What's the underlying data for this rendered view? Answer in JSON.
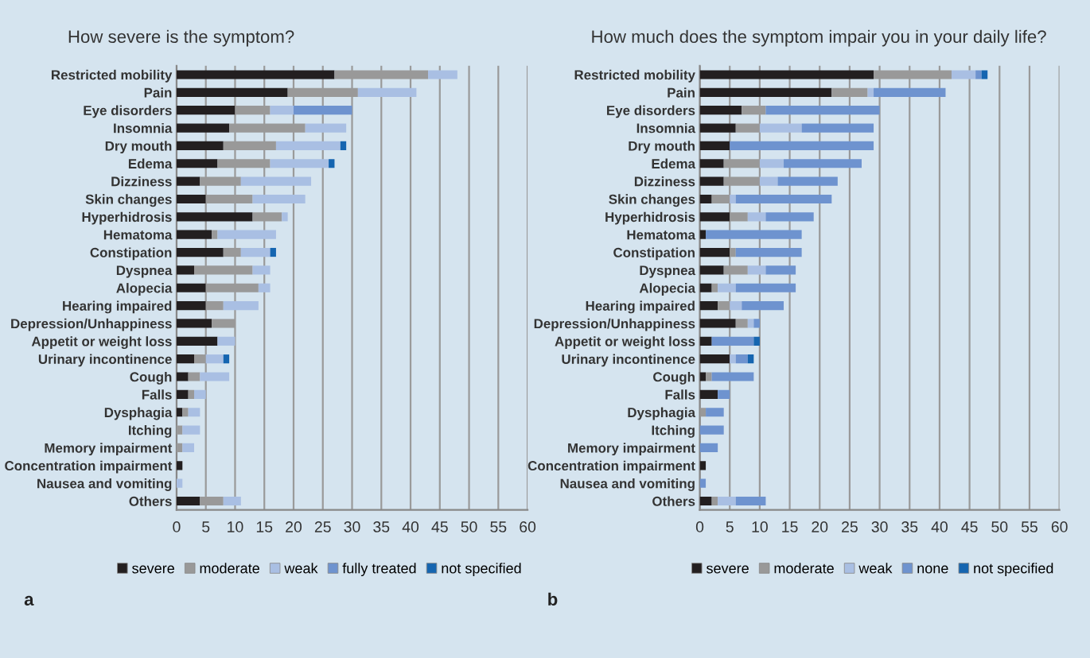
{
  "chart_data": [
    {
      "type": "bar",
      "orientation": "horizontal",
      "stacked": true,
      "title": "How severe is the symptom?",
      "annotations": [
        "a"
      ],
      "categories": [
        "Restricted mobility",
        "Pain",
        "Eye disorders",
        "Insomnia",
        "Dry mouth",
        "Edema",
        "Dizziness",
        "Skin changes",
        "Hyperhidrosis",
        "Hematoma",
        "Constipation",
        "Dyspnea",
        "Alopecia",
        "Hearing impaired",
        "Depression/Unhappiness",
        "Appetit or weight loss",
        "Urinary incontinence",
        "Cough",
        "Falls",
        "Dysphagia",
        "Itching",
        "Memory impairment",
        "Concentration impairment",
        "Nausea and vomiting",
        "Others"
      ],
      "series": [
        {
          "name": "severe",
          "color": "#231f20",
          "values": [
            27,
            19,
            10,
            9,
            8,
            7,
            4,
            5,
            13,
            6,
            8,
            3,
            5,
            5,
            6,
            7,
            3,
            2,
            2,
            1,
            0,
            0,
            1,
            0,
            4
          ]
        },
        {
          "name": "moderate",
          "color": "#999999",
          "values": [
            16,
            12,
            6,
            13,
            9,
            9,
            7,
            8,
            5,
            1,
            3,
            10,
            9,
            3,
            4,
            0,
            2,
            2,
            1,
            1,
            1,
            1,
            0,
            0,
            4
          ]
        },
        {
          "name": "weak",
          "color": "#a9bfe3",
          "values": [
            5,
            10,
            4,
            7,
            11,
            10,
            12,
            9,
            1,
            10,
            5,
            3,
            2,
            6,
            0,
            3,
            3,
            5,
            2,
            2,
            3,
            2,
            0,
            1,
            3
          ]
        },
        {
          "name": "fully treated",
          "color": "#6e93cf",
          "values": [
            0,
            0,
            10,
            0,
            0,
            0,
            0,
            0,
            0,
            0,
            0,
            0,
            0,
            0,
            0,
            0,
            0,
            0,
            0,
            0,
            0,
            0,
            0,
            0,
            0
          ]
        },
        {
          "name": "not specified",
          "color": "#1565b0",
          "values": [
            0,
            0,
            0,
            0,
            1,
            1,
            0,
            0,
            0,
            0,
            1,
            0,
            0,
            0,
            0,
            0,
            1,
            0,
            0,
            0,
            0,
            0,
            0,
            0,
            0
          ]
        }
      ],
      "xlim": [
        0,
        60
      ],
      "xticks": [
        0,
        5,
        10,
        15,
        20,
        25,
        30,
        35,
        40,
        45,
        50,
        55,
        60
      ],
      "grid": "x",
      "legend": "bottom"
    },
    {
      "type": "bar",
      "orientation": "horizontal",
      "stacked": true,
      "title": "How much does the symptom impair you in your daily life?",
      "annotations": [
        "b"
      ],
      "categories": [
        "Restricted mobility",
        "Pain",
        "Eye disorders",
        "Insomnia",
        "Dry mouth",
        "Edema",
        "Dizziness",
        "Skin changes",
        "Hyperhidrosis",
        "Hematoma",
        "Constipation",
        "Dyspnea",
        "Alopecia",
        "Hearing impaired",
        "Depression/Unhappiness",
        "Appetit or weight loss",
        "Urinary incontinence",
        "Cough",
        "Falls",
        "Dysphagia",
        "Itching",
        "Memory impairment",
        "Concentration impairment",
        "Nausea and vomiting",
        "Others"
      ],
      "series": [
        {
          "name": "severe",
          "color": "#231f20",
          "values": [
            29,
            22,
            7,
            6,
            5,
            4,
            4,
            2,
            5,
            1,
            5,
            4,
            2,
            3,
            6,
            2,
            5,
            1,
            3,
            0,
            0,
            0,
            1,
            0,
            2
          ]
        },
        {
          "name": "moderate",
          "color": "#999999",
          "values": [
            13,
            6,
            4,
            4,
            0,
            6,
            6,
            3,
            3,
            0,
            1,
            4,
            1,
            2,
            2,
            0,
            0,
            1,
            0,
            1,
            0,
            0,
            0,
            0,
            1
          ]
        },
        {
          "name": "weak",
          "color": "#a9bfe3",
          "values": [
            4,
            1,
            0,
            7,
            0,
            4,
            3,
            1,
            3,
            0,
            0,
            3,
            3,
            2,
            1,
            0,
            1,
            0,
            0,
            0,
            0,
            0,
            0,
            0,
            3
          ]
        },
        {
          "name": "none",
          "color": "#6e93cf",
          "values": [
            1,
            12,
            19,
            12,
            24,
            13,
            10,
            16,
            8,
            16,
            11,
            5,
            10,
            7,
            1,
            7,
            2,
            7,
            2,
            3,
            4,
            3,
            0,
            1,
            5
          ]
        },
        {
          "name": "not specified",
          "color": "#1565b0",
          "values": [
            1,
            0,
            0,
            0,
            0,
            0,
            0,
            0,
            0,
            0,
            0,
            0,
            0,
            0,
            0,
            1,
            1,
            0,
            0,
            0,
            0,
            0,
            0,
            0,
            0
          ]
        }
      ],
      "xlim": [
        0,
        60
      ],
      "xticks": [
        0,
        5,
        10,
        15,
        20,
        25,
        30,
        35,
        40,
        45,
        50,
        55,
        60
      ],
      "grid": "x",
      "legend": "bottom"
    }
  ]
}
